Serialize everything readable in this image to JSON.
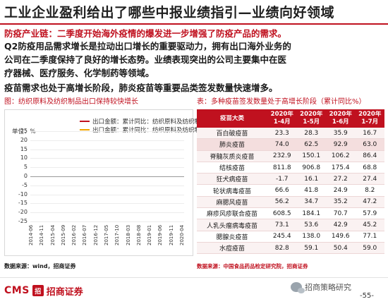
{
  "page": {
    "title": "工业企业盈利给出了哪些中报业绩指引—业绩向好领域",
    "subhead": "防疫产业链：二季度开始海外疫情的爆发进一步增强了防疫产品的需求。",
    "body_lines": [
      "Q2防疫用品需求增长是拉动出口增长的重要驱动力，拥有出口海外业务的",
      "公司在二季度保持了良好的增长态势。业绩表现突出的公司主要集中在医",
      "疗器械、医疗服务、化学制药等领域。"
    ],
    "vaccine_line": "疫苗需求也处于高增长阶段，肺炎疫苗等重要品类签发数量快速增多。"
  },
  "chart": {
    "caption": "图：纺织原料及纺织制品出口保持较快增长",
    "unit": "单位：%",
    "series_colors": [
      "#c0111f",
      "#f0a400"
    ],
    "source": "数据来源：wind，招商证券"
  },
  "chart_data": {
    "type": "line",
    "title": "",
    "xlabel": "",
    "ylabel": "单位：%",
    "ylim": [
      -25,
      25
    ],
    "yticks": [
      25,
      20,
      15,
      10,
      5,
      0,
      -5,
      -10,
      -15,
      -20,
      -25
    ],
    "x_ticks": [
      "2014-06",
      "2014-11",
      "2015-04",
      "2015-09",
      "2016-02",
      "2016-07",
      "2016-12",
      "2017-05",
      "2017-10",
      "2018-03",
      "2018-08",
      "2019-01",
      "2019-06",
      "2019-11",
      "2020-04"
    ],
    "legend_position": "top-center",
    "grid": true,
    "series": [
      {
        "name": "出口金额：累计同比：纺织原料及纺织制品",
        "x": [],
        "y": []
      },
      {
        "name": "出口金额：累计同比：纺织原料及纺织制品",
        "x": [],
        "y": []
      }
    ]
  },
  "table": {
    "caption": "表：多种疫苗签发数量处于高增长阶段（累计同比%）",
    "headers": [
      "疫苗大类",
      "2020年1-4月",
      "2020年1-5月",
      "2020年1-6月",
      "2020年1-7月"
    ],
    "rows": [
      [
        "百白破疫苗",
        "23.3",
        "28.3",
        "35.9",
        "16.7"
      ],
      [
        "肺炎疫苗",
        "74.0",
        "62.5",
        "92.9",
        "63.0"
      ],
      [
        "脊髓灰质炎疫苗",
        "232.9",
        "150.1",
        "106.2",
        "86.4"
      ],
      [
        "结核疫苗",
        "811.8",
        "906.8",
        "175.4",
        "68.8"
      ],
      [
        "狂犬病疫苗",
        "-1.7",
        "16.1",
        "27.2",
        "27.4"
      ],
      [
        "轮状病毒疫苗",
        "66.6",
        "41.8",
        "24.9",
        "8.2"
      ],
      [
        "麻腮风疫苗",
        "56.2",
        "34.7",
        "35.2",
        "47.2"
      ],
      [
        "麻疹风疹联合疫苗",
        "608.5",
        "184.1",
        "70.7",
        "57.9"
      ],
      [
        "人乳头瘤病毒疫苗",
        "73.1",
        "53.6",
        "42.9",
        "45.2"
      ],
      [
        "腮腺炎疫苗",
        "245.4",
        "138.0",
        "149.6",
        "77.1"
      ],
      [
        "水痘疫苗",
        "82.8",
        "59.1",
        "50.4",
        "59.0"
      ]
    ],
    "highlight_row": 1,
    "source": "数据来源：中国食品药品检定研究院，招商证券"
  },
  "footer": {
    "logo_text": "CMS",
    "logo_mark": "招",
    "logo_cn": "招商证券",
    "wechat_label": "招商策略研究",
    "page_number": "-55-"
  }
}
